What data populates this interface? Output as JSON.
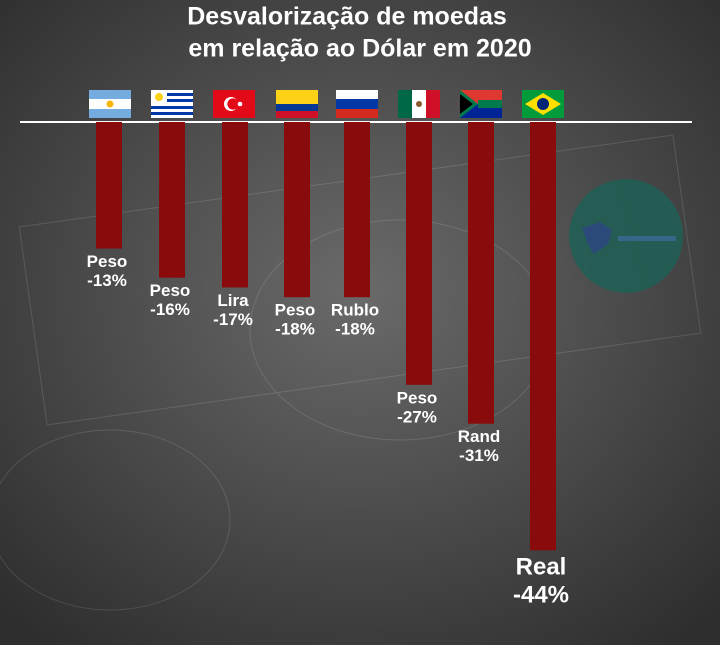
{
  "chart_data": {
    "type": "bar",
    "title": [
      "Desvalorização de moedas",
      "em relação ao Dólar em 2020"
    ],
    "categories": [
      "Peso",
      "Peso",
      "Lira",
      "Peso",
      "Rublo",
      "Peso",
      "Rand",
      "Real"
    ],
    "values": [
      -13,
      -16,
      -17,
      -18,
      -18,
      -27,
      -31,
      -44
    ],
    "value_labels": [
      "-13%",
      "-16%",
      "-17%",
      "-18%",
      "-18%",
      "-27%",
      "-31%",
      "-44%"
    ],
    "color": "#8a0b0b",
    "label_colors": [
      "#ffffff",
      "#ffffff",
      "#ffffff",
      "#ffffff",
      "#ffffff",
      "#ffffff",
      "#ffffff",
      "#f2a3a3"
    ],
    "ylim": [
      -45,
      0
    ]
  }
}
